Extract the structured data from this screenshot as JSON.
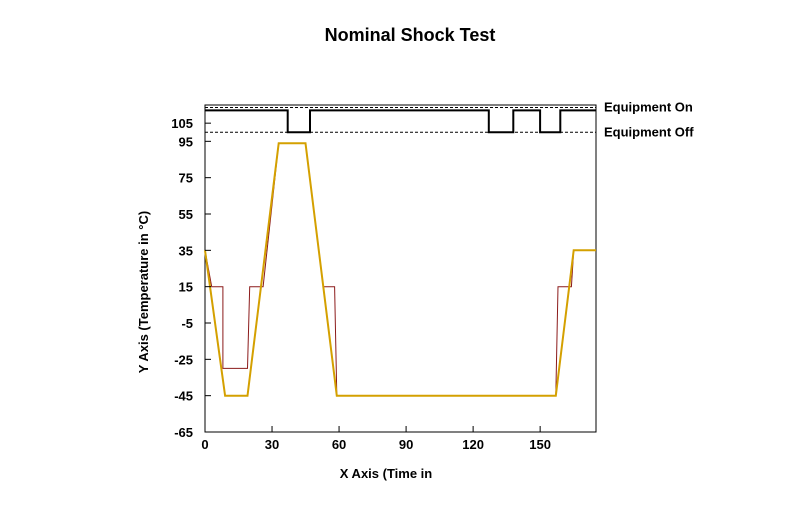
{
  "chart_data": {
    "type": "line",
    "title": "Nominal Shock Test",
    "xlabel": "X Axis (Time in",
    "ylabel": "Y Axis (Temperature in °C)",
    "xlim": [
      0,
      175
    ],
    "ylim": [
      -65,
      115
    ],
    "x_ticks": [
      0,
      30,
      60,
      90,
      120,
      150
    ],
    "y_ticks": [
      105,
      95,
      75,
      55,
      35,
      15,
      -5,
      -25,
      -45,
      -65
    ],
    "grid": false,
    "equipment_levels": {
      "on": {
        "label": "Equipment On",
        "value": 112
      },
      "off": {
        "label": "Equipment Off",
        "value": 100
      }
    },
    "series": [
      {
        "color": "#d4a000",
        "points": [
          [
            0,
            35
          ],
          [
            9,
            -45
          ],
          [
            19,
            -45
          ],
          [
            33,
            94
          ],
          [
            45,
            94
          ],
          [
            59,
            -45
          ],
          [
            157,
            -45
          ],
          [
            165,
            35
          ],
          [
            175,
            35
          ]
        ]
      },
      {
        "color": "#8b1a1a",
        "points": [
          [
            0,
            35
          ],
          [
            3,
            15
          ],
          [
            8,
            15
          ],
          [
            8,
            -30
          ],
          [
            19,
            -30
          ],
          [
            20,
            15
          ],
          [
            26,
            15
          ],
          [
            33,
            94
          ],
          [
            45,
            94
          ],
          [
            53,
            15
          ],
          [
            58,
            15
          ],
          [
            59,
            -45
          ],
          [
            157,
            -45
          ],
          [
            158,
            15
          ],
          [
            164,
            15
          ],
          [
            165,
            35
          ],
          [
            175,
            35
          ]
        ]
      },
      {
        "color": "#000000",
        "points": [
          [
            0,
            112
          ],
          [
            37,
            112
          ],
          [
            37,
            100
          ],
          [
            47,
            100
          ],
          [
            47,
            112
          ],
          [
            127,
            112
          ],
          [
            127,
            100
          ],
          [
            138,
            100
          ],
          [
            138,
            112
          ],
          [
            150,
            112
          ],
          [
            150,
            100
          ],
          [
            159,
            100
          ],
          [
            159,
            112
          ],
          [
            175,
            112
          ]
        ]
      }
    ]
  }
}
